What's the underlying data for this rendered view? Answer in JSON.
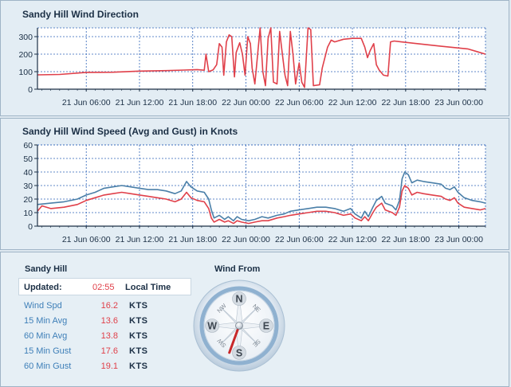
{
  "chart_data": [
    {
      "type": "line",
      "title": "Sandy Hill Wind Direction",
      "xlabel": "",
      "ylabel": "",
      "x_ticks": [
        "21 Jun 06:00",
        "21 Jun 12:00",
        "21 Jun 18:00",
        "22 Jun 00:00",
        "22 Jun 06:00",
        "22 Jun 12:00",
        "22 Jun 18:00",
        "23 Jun 00:00"
      ],
      "x_tick_hours": [
        6,
        12,
        18,
        24,
        30,
        36,
        42,
        48
      ],
      "x_range_hours": [
        0.5,
        51
      ],
      "y_ticks": [
        "0",
        "100",
        "200",
        "300"
      ],
      "ylim": [
        0,
        350
      ],
      "grid": true,
      "series": [
        {
          "color": "#e0404a",
          "points": [
            [
              0.5,
              82
            ],
            [
              3,
              84
            ],
            [
              6,
              96
            ],
            [
              9,
              97
            ],
            [
              12,
              103
            ],
            [
              15,
              106
            ],
            [
              17,
              109
            ],
            [
              18.5,
              112
            ],
            [
              19.3,
              108
            ],
            [
              19.5,
              200
            ],
            [
              19.8,
              100
            ],
            [
              20.3,
              110
            ],
            [
              20.7,
              140
            ],
            [
              21,
              260
            ],
            [
              21.3,
              240
            ],
            [
              21.5,
              80
            ],
            [
              21.8,
              270
            ],
            [
              22.1,
              310
            ],
            [
              22.4,
              300
            ],
            [
              22.7,
              70
            ],
            [
              22.9,
              210
            ],
            [
              23.3,
              265
            ],
            [
              23.6,
              200
            ],
            [
              23.9,
              80
            ],
            [
              24.2,
              300
            ],
            [
              24.5,
              260
            ],
            [
              24.7,
              120
            ],
            [
              25,
              30
            ],
            [
              25.3,
              190
            ],
            [
              25.6,
              350
            ],
            [
              25.9,
              100
            ],
            [
              26.2,
              20
            ],
            [
              26.5,
              290
            ],
            [
              26.8,
              350
            ],
            [
              27.1,
              40
            ],
            [
              27.5,
              30
            ],
            [
              27.8,
              330
            ],
            [
              28.1,
              200
            ],
            [
              28.4,
              80
            ],
            [
              28.7,
              20
            ],
            [
              29,
              330
            ],
            [
              29.3,
              200
            ],
            [
              29.6,
              30
            ],
            [
              30,
              150
            ],
            [
              30.3,
              40
            ],
            [
              30.6,
              10
            ],
            [
              31,
              350
            ],
            [
              31.3,
              340
            ],
            [
              31.6,
              20
            ],
            [
              32.3,
              25
            ],
            [
              32.6,
              120
            ],
            [
              33.2,
              240
            ],
            [
              33.6,
              280
            ],
            [
              34,
              270
            ],
            [
              35,
              285
            ],
            [
              36,
              290
            ],
            [
              37,
              290
            ],
            [
              37.4,
              240
            ],
            [
              37.7,
              180
            ],
            [
              38,
              220
            ],
            [
              38.4,
              260
            ],
            [
              38.7,
              140
            ],
            [
              39,
              110
            ],
            [
              39.5,
              80
            ],
            [
              40,
              75
            ],
            [
              40.3,
              270
            ],
            [
              40.7,
              275
            ],
            [
              41.5,
              270
            ],
            [
              43,
              262
            ],
            [
              46,
              245
            ],
            [
              49,
              230
            ],
            [
              50,
              215
            ],
            [
              51,
              200
            ]
          ]
        }
      ]
    },
    {
      "type": "line",
      "title": "Sandy Hill Wind Speed (Avg and Gust) in Knots",
      "xlabel": "",
      "ylabel": "",
      "x_ticks": [
        "21 Jun 06:00",
        "21 Jun 12:00",
        "21 Jun 18:00",
        "22 Jun 00:00",
        "22 Jun 06:00",
        "22 Jun 12:00",
        "22 Jun 18:00",
        "23 Jun 00:00"
      ],
      "x_tick_hours": [
        6,
        12,
        18,
        24,
        30,
        36,
        42,
        48
      ],
      "x_range_hours": [
        0.5,
        51
      ],
      "y_ticks": [
        "0",
        "10",
        "20",
        "30",
        "40",
        "50",
        "60"
      ],
      "ylim": [
        0,
        60
      ],
      "grid": true,
      "series": [
        {
          "color": "#4a7fa8",
          "points": [
            [
              0.5,
              16
            ],
            [
              2,
              17
            ],
            [
              3.5,
              18
            ],
            [
              5,
              20
            ],
            [
              6,
              23
            ],
            [
              7,
              25
            ],
            [
              8,
              28
            ],
            [
              9,
              29
            ],
            [
              10,
              30
            ],
            [
              11,
              29
            ],
            [
              12,
              28
            ],
            [
              13,
              27
            ],
            [
              14,
              27
            ],
            [
              15,
              26
            ],
            [
              16,
              24
            ],
            [
              16.7,
              26
            ],
            [
              17.3,
              33
            ],
            [
              17.8,
              29
            ],
            [
              18.5,
              26
            ],
            [
              19.3,
              25
            ],
            [
              19.8,
              20
            ],
            [
              20.1,
              12
            ],
            [
              20.4,
              6
            ],
            [
              21,
              8
            ],
            [
              21.6,
              5
            ],
            [
              22,
              7
            ],
            [
              22.6,
              4
            ],
            [
              23,
              7
            ],
            [
              23.5,
              5
            ],
            [
              24.3,
              4
            ],
            [
              25,
              5
            ],
            [
              25.8,
              7
            ],
            [
              26.5,
              6
            ],
            [
              27.5,
              8
            ],
            [
              28.3,
              9
            ],
            [
              29,
              11
            ],
            [
              30,
              12
            ],
            [
              31,
              13
            ],
            [
              32,
              14
            ],
            [
              33,
              14
            ],
            [
              34,
              13
            ],
            [
              35,
              11
            ],
            [
              35.8,
              13
            ],
            [
              36.3,
              9
            ],
            [
              37,
              6
            ],
            [
              37.4,
              11
            ],
            [
              37.8,
              7
            ],
            [
              38.3,
              14
            ],
            [
              38.7,
              19
            ],
            [
              39.3,
              22
            ],
            [
              39.7,
              17
            ],
            [
              40.5,
              15
            ],
            [
              40.9,
              12
            ],
            [
              41.3,
              19
            ],
            [
              41.6,
              35
            ],
            [
              41.9,
              40
            ],
            [
              42.3,
              38
            ],
            [
              42.7,
              32
            ],
            [
              43.3,
              34
            ],
            [
              44,
              33
            ],
            [
              45,
              32
            ],
            [
              46,
              31
            ],
            [
              46.5,
              28
            ],
            [
              47,
              27
            ],
            [
              47.5,
              29
            ],
            [
              47.9,
              25
            ],
            [
              48.6,
              21
            ],
            [
              49.5,
              19
            ],
            [
              50.4,
              18
            ],
            [
              51,
              17
            ]
          ]
        },
        {
          "color": "#e0404a",
          "points": [
            [
              0.5,
              11
            ],
            [
              1,
              15
            ],
            [
              2,
              13
            ],
            [
              3.5,
              14
            ],
            [
              5,
              16
            ],
            [
              6,
              19
            ],
            [
              7,
              21
            ],
            [
              8,
              23
            ],
            [
              9,
              24
            ],
            [
              10,
              25
            ],
            [
              11,
              24
            ],
            [
              12,
              23
            ],
            [
              13,
              22
            ],
            [
              14,
              21
            ],
            [
              15,
              20
            ],
            [
              16,
              18
            ],
            [
              16.7,
              20
            ],
            [
              17.3,
              25
            ],
            [
              17.8,
              21
            ],
            [
              18.5,
              19
            ],
            [
              19.3,
              18
            ],
            [
              19.8,
              13
            ],
            [
              20.1,
              6
            ],
            [
              20.4,
              3
            ],
            [
              21,
              5
            ],
            [
              21.6,
              3
            ],
            [
              22,
              4
            ],
            [
              22.6,
              2
            ],
            [
              23,
              4
            ],
            [
              23.5,
              3
            ],
            [
              24.3,
              2
            ],
            [
              25,
              3
            ],
            [
              25.8,
              4
            ],
            [
              26.5,
              4
            ],
            [
              27.5,
              6
            ],
            [
              28.3,
              7
            ],
            [
              29,
              8
            ],
            [
              30,
              9
            ],
            [
              31,
              10
            ],
            [
              32,
              11
            ],
            [
              33,
              11
            ],
            [
              34,
              10
            ],
            [
              35,
              8
            ],
            [
              35.8,
              9
            ],
            [
              36.3,
              6
            ],
            [
              37,
              4
            ],
            [
              37.4,
              7
            ],
            [
              37.8,
              4
            ],
            [
              38.3,
              10
            ],
            [
              38.7,
              14
            ],
            [
              39.3,
              17
            ],
            [
              39.7,
              12
            ],
            [
              40.5,
              10
            ],
            [
              40.9,
              8
            ],
            [
              41.3,
              14
            ],
            [
              41.6,
              26
            ],
            [
              41.9,
              30
            ],
            [
              42.3,
              28
            ],
            [
              42.7,
              23
            ],
            [
              43.3,
              25
            ],
            [
              44,
              24
            ],
            [
              45,
              23
            ],
            [
              46,
              22
            ],
            [
              46.5,
              20
            ],
            [
              47,
              19
            ],
            [
              47.5,
              21
            ],
            [
              47.9,
              17
            ],
            [
              48.6,
              14
            ],
            [
              49.5,
              13
            ],
            [
              50.4,
              12
            ],
            [
              51,
              13
            ]
          ]
        }
      ]
    }
  ],
  "info": {
    "station": "Sandy Hill",
    "updated_label": "Updated:",
    "updated_time": "02:55",
    "timezone": "Local Time",
    "rows": [
      {
        "label": "Wind Spd",
        "value": "16.2",
        "unit": "KTS"
      },
      {
        "label": "15 Min Avg",
        "value": "13.6",
        "unit": "KTS"
      },
      {
        "label": "60 Min Avg",
        "value": "13.8",
        "unit": "KTS"
      },
      {
        "label": "15 Min Gust",
        "value": "17.6",
        "unit": "KTS"
      },
      {
        "label": "60 Min Gust",
        "value": "19.1",
        "unit": "KTS"
      }
    ]
  },
  "compass": {
    "title": "Wind From",
    "cardinals": [
      "N",
      "E",
      "S",
      "W"
    ],
    "ordinals": [
      "NE",
      "SE",
      "SW",
      "NW"
    ],
    "direction_deg": 200,
    "needle_color": "#c8282a"
  }
}
